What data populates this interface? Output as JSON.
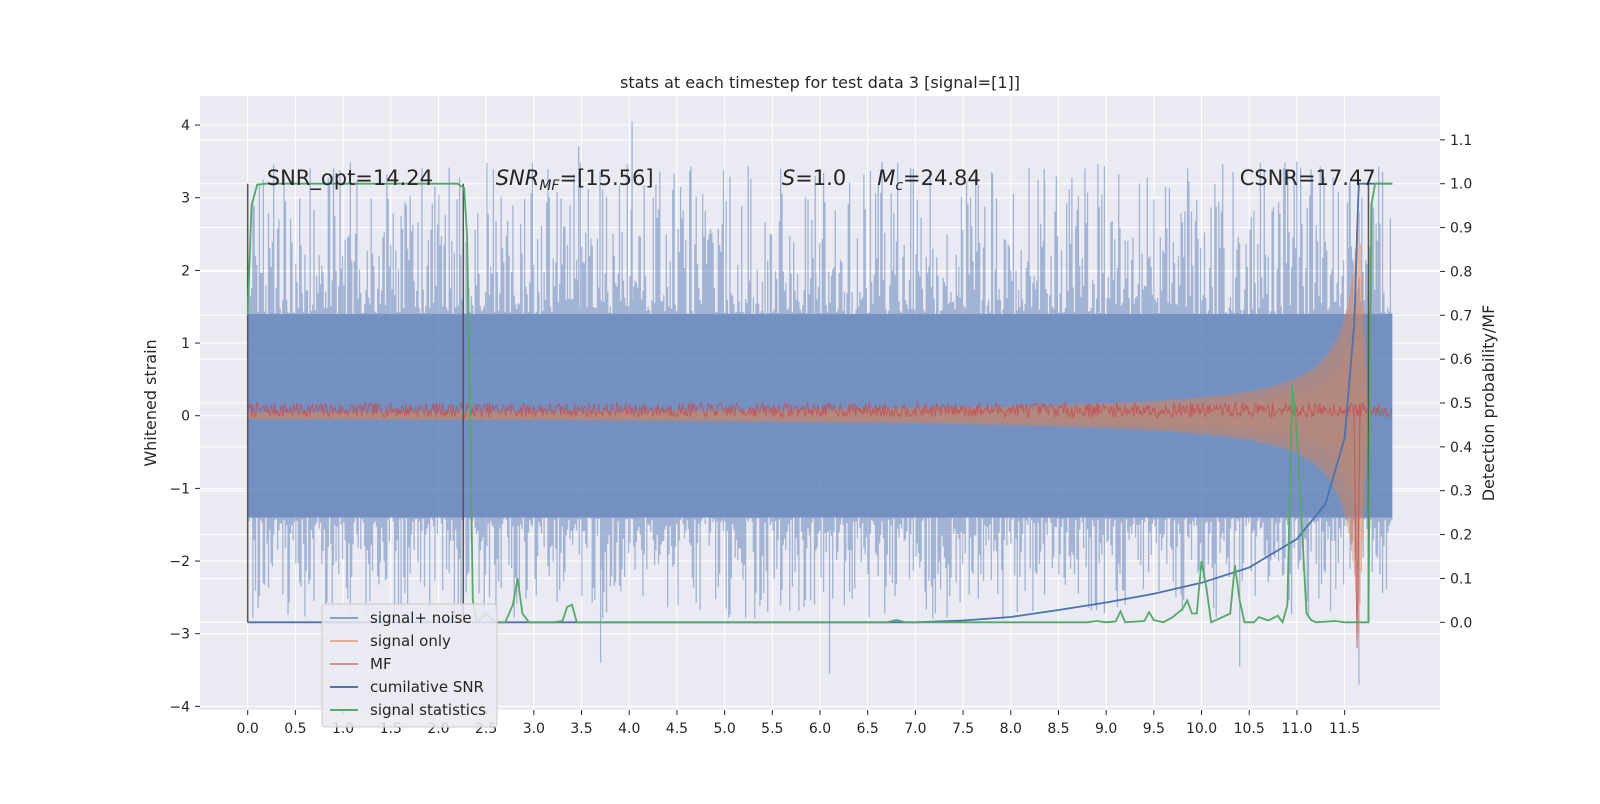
{
  "chart_data": {
    "type": "line",
    "title": "stats at each timestep for test data 3 [signal=[1]]",
    "xlabel": "",
    "ylabel_left": "Whitened strain",
    "ylabel_right": "Detection probability/MF",
    "xlim": [
      -0.5,
      12.5
    ],
    "ylim_left": [
      -4.05,
      4.4
    ],
    "ylim_right": [
      -0.2,
      1.2
    ],
    "x_ticks": [
      "0.0",
      "0.5",
      "1.0",
      "1.5",
      "2.0",
      "2.5",
      "3.0",
      "3.5",
      "4.0",
      "4.5",
      "5.0",
      "5.5",
      "6.0",
      "6.5",
      "7.0",
      "7.5",
      "8.0",
      "8.5",
      "9.0",
      "9.5",
      "10.0",
      "10.5",
      "11.0",
      "11.5"
    ],
    "y_ticks_left": [
      "4",
      "3",
      "2",
      "1",
      "0",
      "−1",
      "−2",
      "−3",
      "−4"
    ],
    "y_ticks_right": [
      "1.1",
      "1.0",
      "0.9",
      "0.8",
      "0.7",
      "0.6",
      "0.5",
      "0.4",
      "0.3",
      "0.2",
      "0.1",
      "0.0"
    ],
    "grid": true,
    "legend_position": "lower-left",
    "annotations": [
      {
        "text": "SNR_opt=14.24",
        "x": 0.2
      },
      {
        "text": "SNR_MF=[15.56]",
        "x": 2.6
      },
      {
        "text": "S=1.0",
        "x": 5.6
      },
      {
        "text": "M_c=24.84",
        "x": 6.6
      },
      {
        "text": "CSNR=17.47",
        "x": 10.4
      }
    ],
    "series": [
      {
        "name": "signal+ noise",
        "color": "#4c72b0",
        "axis": "left",
        "x_range": [
          0.0,
          12.0
        ],
        "envelope_core": [
          -1.4,
          1.4
        ],
        "envelope_extreme": [
          -2.8,
          3.5
        ],
        "spikes": [
          {
            "x": 4.03,
            "y": 4.05
          },
          {
            "x": 3.47,
            "y": 3.7
          },
          {
            "x": 5.95,
            "y": 3.3
          },
          {
            "x": 7.8,
            "y": 3.35
          },
          {
            "x": 8.35,
            "y": 3.4
          },
          {
            "x": 11.55,
            "y": 3.2
          },
          {
            "x": 6.1,
            "y": -3.55
          },
          {
            "x": 11.65,
            "y": -3.7
          },
          {
            "x": 3.7,
            "y": -3.4
          },
          {
            "x": 10.4,
            "y": -3.45
          }
        ]
      },
      {
        "name": "signal only",
        "color": "#dd8452",
        "axis": "left",
        "x_range": [
          0.0,
          11.75
        ],
        "amplitude_at_start": 0.05,
        "amplitude_max": 3.2,
        "peak_x": 11.64
      },
      {
        "name": "MF",
        "color": "#c44e52",
        "axis": "left",
        "x_range": [
          0.0,
          12.0
        ],
        "band": [
          -0.02,
          0.18
        ],
        "dip": {
          "x": 11.63,
          "y": -3.2
        }
      },
      {
        "name": "cumilative SNR",
        "color": "#4c72b0",
        "axis": "right",
        "points": [
          [
            0.0,
            0.0
          ],
          [
            7.0,
            0.0
          ],
          [
            7.5,
            0.004
          ],
          [
            8.0,
            0.012
          ],
          [
            8.5,
            0.028
          ],
          [
            9.0,
            0.045
          ],
          [
            9.5,
            0.065
          ],
          [
            10.0,
            0.09
          ],
          [
            10.5,
            0.125
          ],
          [
            11.0,
            0.19
          ],
          [
            11.3,
            0.27
          ],
          [
            11.5,
            0.42
          ],
          [
            11.6,
            0.68
          ],
          [
            11.64,
            0.95
          ],
          [
            11.65,
            1.0
          ],
          [
            12.0,
            1.0
          ]
        ]
      },
      {
        "name": "signal statistics",
        "color": "#55a868",
        "axis": "right",
        "points": [
          [
            0.0,
            0.7
          ],
          [
            0.04,
            0.95
          ],
          [
            0.1,
            0.998
          ],
          [
            0.2,
            1.0
          ],
          [
            2.2,
            1.0
          ],
          [
            2.27,
            0.99
          ],
          [
            2.3,
            0.88
          ],
          [
            2.33,
            0.5
          ],
          [
            2.36,
            0.05
          ],
          [
            2.4,
            0.0
          ],
          [
            2.5,
            0.02
          ],
          [
            2.6,
            0.0
          ],
          [
            2.7,
            0.0
          ],
          [
            2.78,
            0.04
          ],
          [
            2.83,
            0.1
          ],
          [
            2.88,
            0.02
          ],
          [
            2.95,
            0.0
          ],
          [
            3.2,
            0.0
          ],
          [
            3.3,
            0.003
          ],
          [
            3.35,
            0.035
          ],
          [
            3.4,
            0.04
          ],
          [
            3.45,
            0.0
          ],
          [
            3.6,
            0.0
          ],
          [
            6.7,
            0.0
          ],
          [
            6.8,
            0.005
          ],
          [
            6.9,
            0.0
          ],
          [
            8.8,
            0.0
          ],
          [
            8.9,
            0.003
          ],
          [
            9.0,
            0.0
          ],
          [
            9.1,
            0.002
          ],
          [
            9.15,
            0.025
          ],
          [
            9.2,
            0.0
          ],
          [
            9.4,
            0.003
          ],
          [
            9.45,
            0.023
          ],
          [
            9.5,
            0.005
          ],
          [
            9.6,
            0.0
          ],
          [
            9.7,
            0.012
          ],
          [
            9.8,
            0.03
          ],
          [
            9.85,
            0.05
          ],
          [
            9.9,
            0.02
          ],
          [
            9.95,
            0.02
          ],
          [
            10.0,
            0.14
          ],
          [
            10.05,
            0.08
          ],
          [
            10.1,
            0.0
          ],
          [
            10.2,
            0.01
          ],
          [
            10.3,
            0.02
          ],
          [
            10.35,
            0.13
          ],
          [
            10.4,
            0.05
          ],
          [
            10.45,
            0.0
          ],
          [
            10.55,
            0.0
          ],
          [
            10.6,
            0.012
          ],
          [
            10.7,
            0.004
          ],
          [
            10.8,
            0.015
          ],
          [
            10.85,
            0.0
          ],
          [
            10.9,
            0.04
          ],
          [
            10.95,
            0.54
          ],
          [
            11.0,
            0.43
          ],
          [
            11.1,
            0.02
          ],
          [
            11.15,
            0.005
          ],
          [
            11.2,
            0.0
          ],
          [
            11.4,
            0.003
          ],
          [
            11.5,
            0.0
          ],
          [
            11.65,
            0.0
          ],
          [
            11.75,
            0.0
          ],
          [
            11.78,
            0.95
          ],
          [
            11.82,
            1.0
          ],
          [
            12.0,
            1.0
          ]
        ]
      }
    ],
    "detector_windows": [
      {
        "x_start": 0.0,
        "x_end": 2.26
      },
      {
        "x_start": 11.75,
        "x_end": 11.75
      }
    ]
  }
}
